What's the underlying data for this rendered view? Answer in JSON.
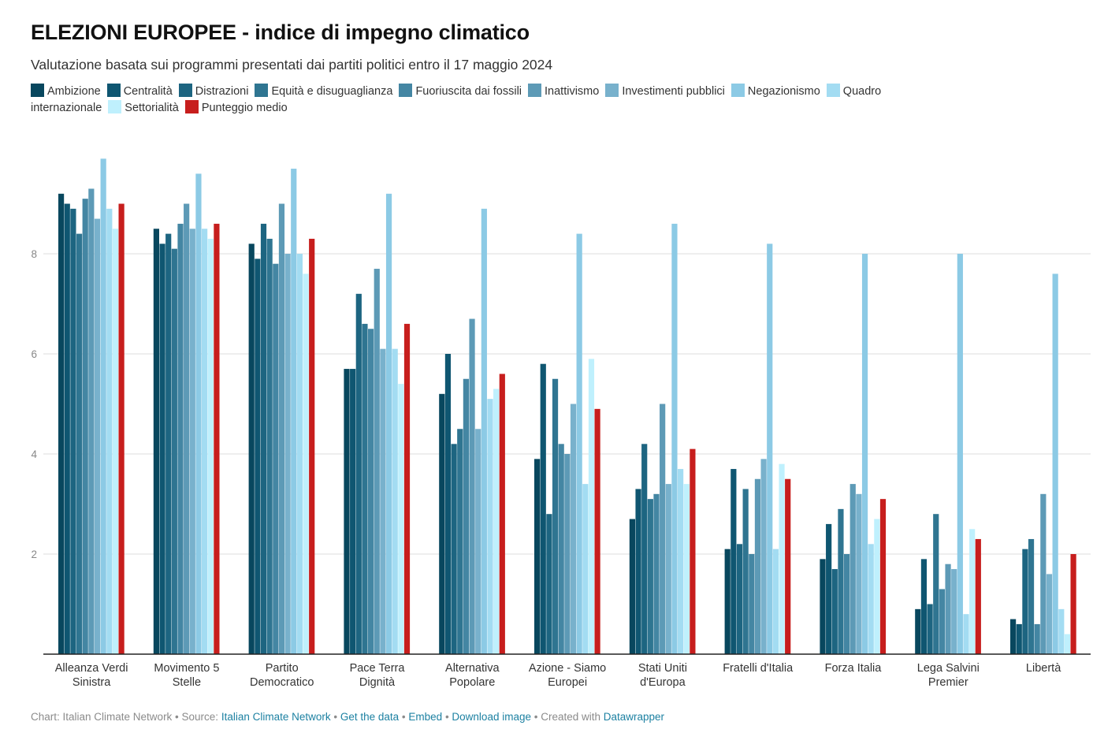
{
  "title": "ELEZIONI EUROPEE - indice di impegno climatico",
  "subtitle": "Valutazione basata sui programmi presentati dai partiti politici entro il 17 maggio 2024",
  "footer": {
    "prefix": "Chart: Italian Climate Network • Source: ",
    "source_link": "Italian Climate Network",
    "sep1": " • ",
    "get_data": "Get the data",
    "sep2": " • ",
    "embed": "Embed",
    "sep3": "  • ",
    "download": "Download image",
    "sep4": " • Created with ",
    "datawrapper": "Datawrapper"
  },
  "chart_data": {
    "type": "bar",
    "categories": [
      [
        "Alleanza Verdi",
        "Sinistra"
      ],
      [
        "Movimento 5",
        "Stelle"
      ],
      [
        "Partito",
        "Democratico"
      ],
      [
        "Pace Terra",
        "Dignità"
      ],
      [
        "Alternativa",
        "Popolare"
      ],
      [
        "Azione - Siamo",
        "Europei"
      ],
      [
        "Stati Uniti",
        "d'Europa"
      ],
      [
        "Fratelli d'Italia"
      ],
      [
        "Forza Italia"
      ],
      [
        "Lega Salvini",
        "Premier"
      ],
      [
        "Libertà"
      ]
    ],
    "ylim": [
      0,
      10
    ],
    "yticks": [
      2,
      4,
      6,
      8
    ],
    "grid": true,
    "legend_position": "top",
    "series": [
      {
        "name": "Ambizione",
        "color": "#08475e",
        "values": [
          9.2,
          8.5,
          8.2,
          5.7,
          5.2,
          3.9,
          2.7,
          2.1,
          1.9,
          0.9,
          0.7
        ]
      },
      {
        "name": "Centralità",
        "color": "#0f5671",
        "values": [
          9.0,
          8.2,
          7.9,
          5.7,
          6.0,
          5.8,
          3.3,
          3.7,
          2.6,
          1.9,
          0.6
        ]
      },
      {
        "name": "Distrazioni",
        "color": "#1d6581",
        "values": [
          8.9,
          8.4,
          8.6,
          7.2,
          4.2,
          2.8,
          4.2,
          2.2,
          1.7,
          1.0,
          2.1
        ]
      },
      {
        "name": "Equità e disuguaglianza",
        "color": "#2f7591",
        "values": [
          8.4,
          8.1,
          8.3,
          6.6,
          4.5,
          5.5,
          3.1,
          3.3,
          2.9,
          2.8,
          2.3
        ]
      },
      {
        "name": "Fuoriuscita dai fossili",
        "color": "#4486a3",
        "values": [
          9.1,
          8.6,
          7.8,
          6.5,
          5.5,
          4.2,
          3.2,
          2.0,
          2.0,
          1.3,
          0.6
        ]
      },
      {
        "name": "Inattivismo",
        "color": "#5d9ab6",
        "values": [
          9.3,
          9.0,
          9.0,
          7.7,
          6.7,
          4.0,
          5.0,
          3.5,
          3.4,
          1.8,
          3.2
        ]
      },
      {
        "name": "Investimenti pubblici",
        "color": "#78b1cc",
        "values": [
          8.7,
          8.5,
          8.0,
          6.1,
          4.5,
          5.0,
          3.4,
          3.9,
          3.2,
          1.7,
          1.6
        ]
      },
      {
        "name": "Negazionismo",
        "color": "#8ccae5",
        "values": [
          9.9,
          9.6,
          9.7,
          9.2,
          8.9,
          8.4,
          8.6,
          8.2,
          8.0,
          8.0,
          7.6
        ]
      },
      {
        "name": "Quadro internazionale",
        "color": "#a3dcf2",
        "values": [
          8.9,
          8.5,
          8.0,
          6.1,
          5.1,
          3.4,
          3.7,
          2.1,
          2.2,
          0.8,
          0.9
        ]
      },
      {
        "name": "Settorialità",
        "color": "#bff0fd",
        "values": [
          8.5,
          8.3,
          7.6,
          5.4,
          5.3,
          5.9,
          3.4,
          3.8,
          2.7,
          2.5,
          0.4
        ]
      },
      {
        "name": "Punteggio medio",
        "color": "#c71e1d",
        "values": [
          9.0,
          8.6,
          8.3,
          6.6,
          5.6,
          4.9,
          4.1,
          3.5,
          3.1,
          2.3,
          2.0
        ]
      }
    ]
  }
}
